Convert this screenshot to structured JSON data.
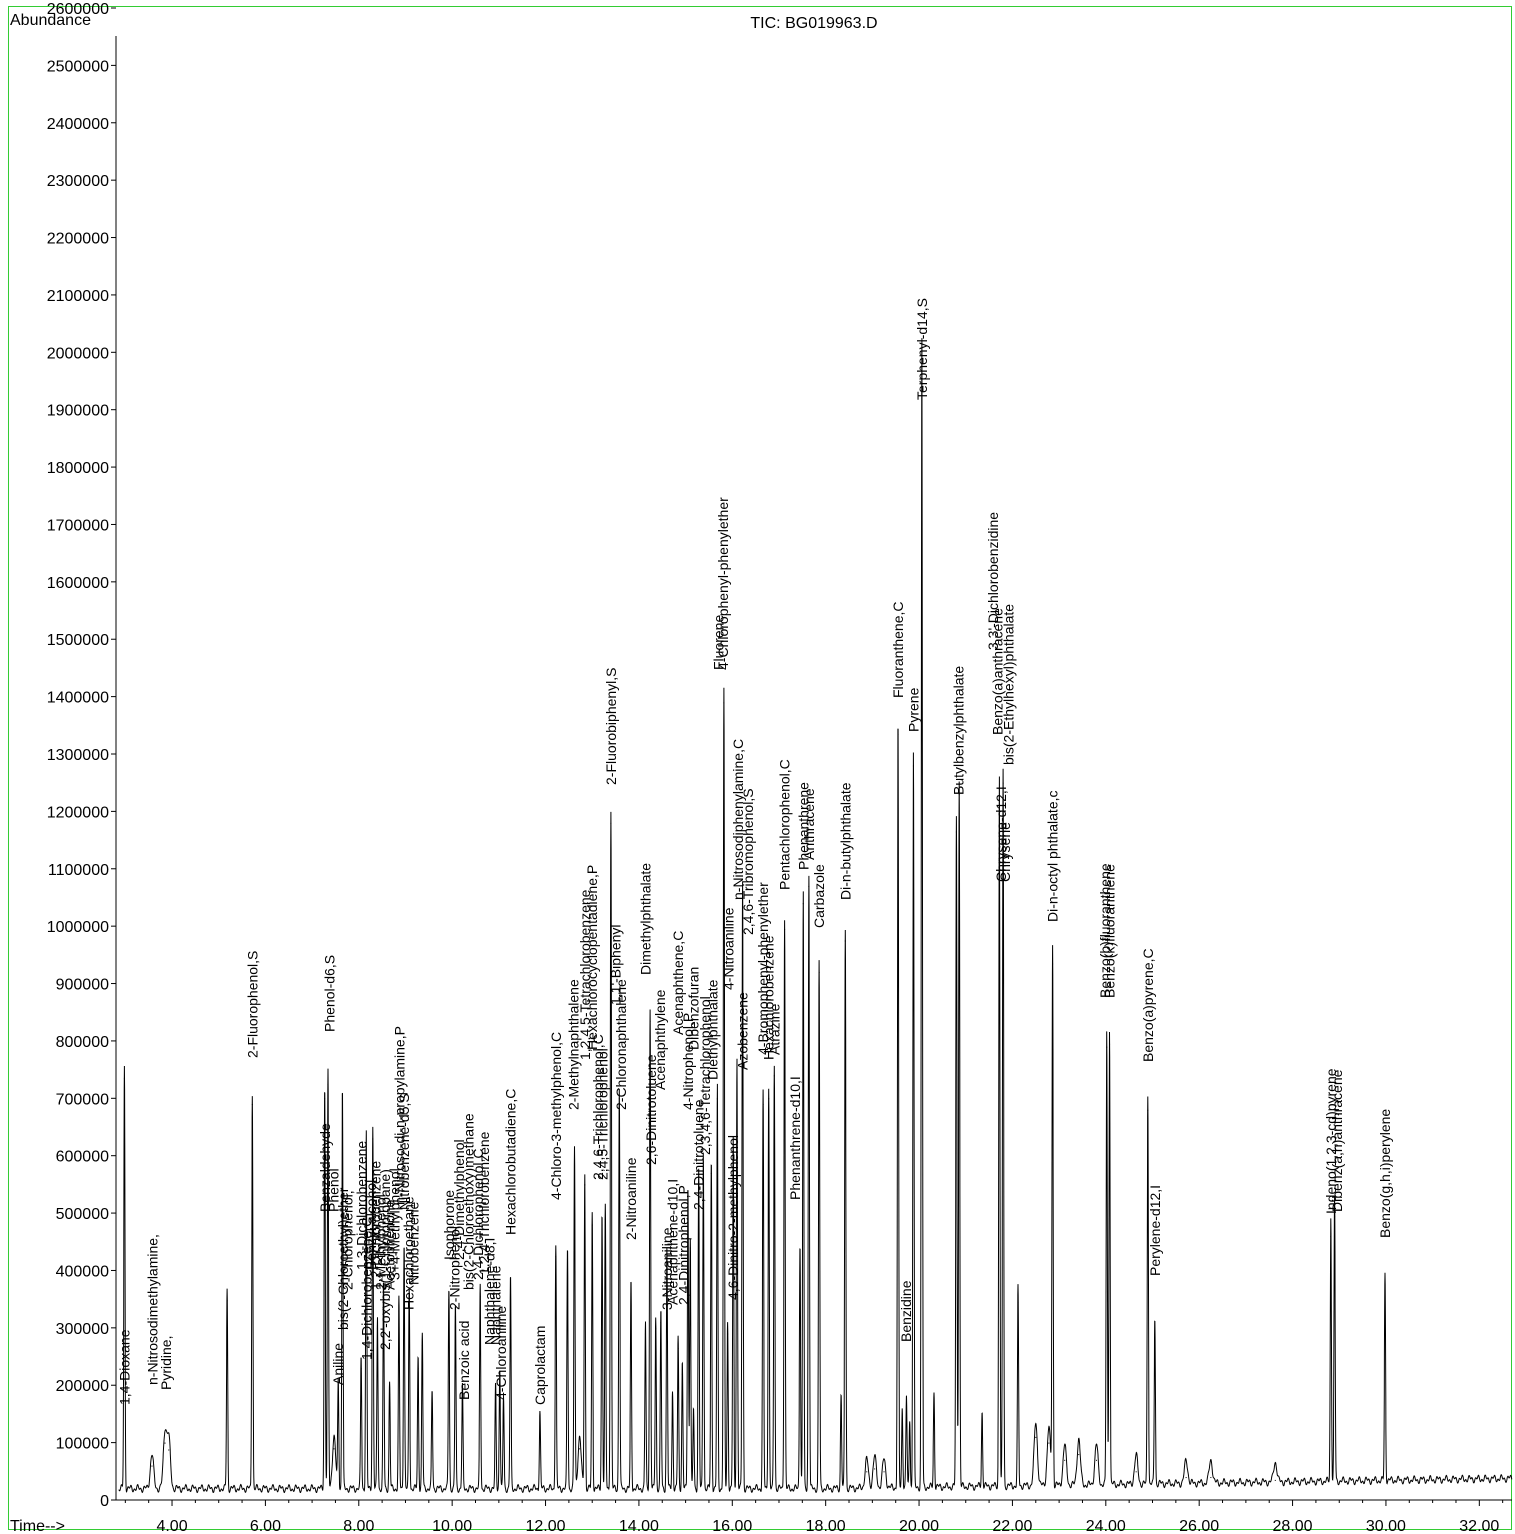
{
  "chart_data": {
    "type": "line",
    "title": "TIC: BG019963.D",
    "ylabel": "Abundance",
    "xlabel": "Time-->",
    "xlim": [
      2.8,
      32.7
    ],
    "ylim": [
      0,
      2600000
    ],
    "x_ticks": [
      4.0,
      6.0,
      8.0,
      10.0,
      12.0,
      14.0,
      16.0,
      18.0,
      20.0,
      22.0,
      24.0,
      26.0,
      28.0,
      30.0,
      32.0
    ],
    "x_tick_labels": [
      "4.00",
      "6.00",
      "8.00",
      "10.00",
      "12.00",
      "14.00",
      "16.00",
      "18.00",
      "20.00",
      "22.00",
      "24.00",
      "26.00",
      "28.00",
      "30.00",
      "32.00"
    ],
    "y_ticks": [
      0,
      100000,
      200000,
      300000,
      400000,
      500000,
      600000,
      700000,
      800000,
      900000,
      1000000,
      1100000,
      1200000,
      1300000,
      1400000,
      1500000,
      1600000,
      1700000,
      1800000,
      1900000,
      2000000,
      2100000,
      2200000,
      2300000,
      2400000,
      2500000,
      2600000
    ],
    "y_tick_labels": [
      "0",
      "100000",
      "200000",
      "300000",
      "400000",
      "500000",
      "600000",
      "700000",
      "800000",
      "900000",
      "1000000",
      "1100000",
      "1200000",
      "1300000",
      "1400000",
      "1500000",
      "1600000",
      "1700000",
      "1800000",
      "1900000",
      "2000000",
      "2100000",
      "2200000",
      "2300000",
      "2400000",
      "2500000",
      "2600000"
    ],
    "baseline": 20000,
    "peaks": [
      {
        "t": 2.98,
        "h": 735000
      },
      {
        "t": 3.57,
        "h": 60000
      },
      {
        "t": 3.85,
        "h": 100000
      },
      {
        "t": 3.93,
        "h": 88000
      },
      {
        "t": 5.18,
        "h": 348000
      },
      {
        "t": 5.72,
        "h": 690000
      },
      {
        "t": 7.27,
        "h": 700000
      },
      {
        "t": 7.34,
        "h": 725000
      },
      {
        "t": 7.47,
        "h": 90000
      },
      {
        "t": 7.56,
        "h": 190000
      },
      {
        "t": 7.65,
        "h": 700000
      },
      {
        "t": 8.05,
        "h": 230000
      },
      {
        "t": 8.16,
        "h": 620000
      },
      {
        "t": 8.3,
        "h": 630000
      },
      {
        "t": 8.4,
        "h": 300000
      },
      {
        "t": 8.53,
        "h": 360000
      },
      {
        "t": 8.66,
        "h": 185000
      },
      {
        "t": 8.86,
        "h": 330000
      },
      {
        "t": 8.97,
        "h": 430000
      },
      {
        "t": 9.08,
        "h": 350000
      },
      {
        "t": 9.27,
        "h": 230000
      },
      {
        "t": 9.36,
        "h": 270000
      },
      {
        "t": 9.57,
        "h": 170000
      },
      {
        "t": 9.93,
        "h": 350000
      },
      {
        "t": 10.07,
        "h": 320000
      },
      {
        "t": 10.22,
        "h": 180000
      },
      {
        "t": 10.6,
        "h": 355000
      },
      {
        "t": 10.93,
        "h": 180000
      },
      {
        "t": 11.02,
        "h": 210000
      },
      {
        "t": 11.1,
        "h": 160000
      },
      {
        "t": 11.25,
        "h": 370000
      },
      {
        "t": 11.88,
        "h": 135000
      },
      {
        "t": 12.22,
        "h": 425000
      },
      {
        "t": 12.47,
        "h": 420000
      },
      {
        "t": 12.62,
        "h": 595000
      },
      {
        "t": 12.73,
        "h": 90000
      },
      {
        "t": 12.84,
        "h": 550000
      },
      {
        "t": 13.0,
        "h": 480000
      },
      {
        "t": 13.21,
        "h": 480000
      },
      {
        "t": 13.28,
        "h": 490000
      },
      {
        "t": 13.4,
        "h": 1180000
      },
      {
        "t": 13.58,
        "h": 700000
      },
      {
        "t": 13.83,
        "h": 360000
      },
      {
        "t": 14.14,
        "h": 290000
      },
      {
        "t": 14.24,
        "h": 835000
      },
      {
        "t": 14.36,
        "h": 300000
      },
      {
        "t": 14.47,
        "h": 310000
      },
      {
        "t": 14.6,
        "h": 420000
      },
      {
        "t": 14.72,
        "h": 170000
      },
      {
        "t": 14.84,
        "h": 265000
      },
      {
        "t": 14.93,
        "h": 220000
      },
      {
        "t": 15.05,
        "h": 530000
      },
      {
        "t": 15.1,
        "h": 440000
      },
      {
        "t": 15.17,
        "h": 140000
      },
      {
        "t": 15.28,
        "h": 555000
      },
      {
        "t": 15.38,
        "h": 590000
      },
      {
        "t": 15.55,
        "h": 570000
      },
      {
        "t": 15.68,
        "h": 700000
      },
      {
        "t": 15.82,
        "h": 1390000
      },
      {
        "t": 15.9,
        "h": 290000
      },
      {
        "t": 16.02,
        "h": 610000
      },
      {
        "t": 16.1,
        "h": 750000
      },
      {
        "t": 16.22,
        "h": 1060000
      },
      {
        "t": 16.66,
        "h": 690000
      },
      {
        "t": 16.78,
        "h": 700000
      },
      {
        "t": 16.9,
        "h": 740000
      },
      {
        "t": 17.12,
        "h": 995000
      },
      {
        "t": 17.45,
        "h": 430000
      },
      {
        "t": 17.52,
        "h": 1040000
      },
      {
        "t": 17.64,
        "h": 1070000
      },
      {
        "t": 17.86,
        "h": 920000
      },
      {
        "t": 18.33,
        "h": 165000
      },
      {
        "t": 18.42,
        "h": 975000
      },
      {
        "t": 18.88,
        "h": 50000
      },
      {
        "t": 19.05,
        "h": 55000
      },
      {
        "t": 19.25,
        "h": 50000
      },
      {
        "t": 19.55,
        "h": 1335000
      },
      {
        "t": 19.64,
        "h": 140000
      },
      {
        "t": 19.73,
        "h": 160000
      },
      {
        "t": 19.8,
        "h": 120000
      },
      {
        "t": 19.88,
        "h": 1280000
      },
      {
        "t": 20.06,
        "h": 2000000
      },
      {
        "t": 20.32,
        "h": 165000
      },
      {
        "t": 20.8,
        "h": 1165000
      },
      {
        "t": 20.86,
        "h": 1230000
      },
      {
        "t": 21.35,
        "h": 130000
      },
      {
        "t": 21.72,
        "h": 1240000
      },
      {
        "t": 21.8,
        "h": 1250000
      },
      {
        "t": 22.12,
        "h": 345000
      },
      {
        "t": 22.5,
        "h": 110000
      },
      {
        "t": 22.78,
        "h": 100000
      },
      {
        "t": 22.86,
        "h": 935000
      },
      {
        "t": 23.12,
        "h": 70000
      },
      {
        "t": 23.42,
        "h": 80000
      },
      {
        "t": 23.8,
        "h": 70000
      },
      {
        "t": 24.02,
        "h": 790000
      },
      {
        "t": 24.08,
        "h": 795000
      },
      {
        "t": 24.65,
        "h": 50000
      },
      {
        "t": 24.9,
        "h": 680000
      },
      {
        "t": 25.05,
        "h": 290000
      },
      {
        "t": 25.72,
        "h": 40000
      },
      {
        "t": 26.25,
        "h": 40000
      },
      {
        "t": 27.63,
        "h": 35000
      },
      {
        "t": 28.82,
        "h": 460000
      },
      {
        "t": 28.9,
        "h": 495000
      },
      {
        "t": 29.98,
        "h": 360000
      }
    ],
    "annotations": [
      {
        "t": 2.98,
        "h": 0,
        "text": "1,4-Dioxane"
      },
      {
        "t": 3.58,
        "h": 0,
        "text": "n-Nitrosodimethylamine,"
      },
      {
        "t": 3.87,
        "h": 0,
        "text": "Pyridine,"
      },
      {
        "t": 5.72,
        "h": 0,
        "text": "2-Fluorophenol,S"
      },
      {
        "t": 7.28,
        "h": 0,
        "text": "Benzaldehyde"
      },
      {
        "t": 7.37,
        "h": 0,
        "text": "Phenol-d6,S"
      },
      {
        "t": 7.46,
        "h": 0,
        "text": "Phenol"
      },
      {
        "t": 7.56,
        "h": 0,
        "text": "Aniline"
      },
      {
        "t": 7.66,
        "h": 0,
        "text": "bis(2-Chloroethyl)ether"
      },
      {
        "t": 7.76,
        "h": 0,
        "text": "2-Chlorophenol,"
      },
      {
        "t": 8.06,
        "h": 0,
        "text": "1,3-Dichlorobenzene"
      },
      {
        "t": 8.16,
        "h": 0,
        "text": "1,4-Dichlorobenzene,C"
      },
      {
        "t": 8.26,
        "h": 0,
        "text": "Benzyl alcohol"
      },
      {
        "t": 8.36,
        "h": 0,
        "text": "1,2-Dichlorobenzene"
      },
      {
        "t": 8.46,
        "h": 0,
        "text": "2-Methylphenol"
      },
      {
        "t": 8.56,
        "h": 0,
        "text": "2,2'-oxybis(1-Chloropropane)"
      },
      {
        "t": 8.66,
        "h": 0,
        "text": "Acetophenone"
      },
      {
        "t": 8.77,
        "h": 0,
        "text": "3+4-Methylphenol"
      },
      {
        "t": 8.87,
        "h": 0,
        "text": "n-Nitroso-di-n-propylamine,P"
      },
      {
        "t": 8.97,
        "h": 0,
        "text": "Nitrobenzene-d5,S"
      },
      {
        "t": 9.07,
        "h": 0,
        "text": "Hexachloroethane"
      },
      {
        "t": 9.17,
        "h": 0,
        "text": "Nitrobenzene"
      },
      {
        "t": 9.93,
        "h": 0,
        "text": "Isophorone"
      },
      {
        "t": 10.05,
        "h": 0,
        "text": "2-Nitrophenol"
      },
      {
        "t": 10.15,
        "h": 0,
        "text": "2,4-Dimethylphenol"
      },
      {
        "t": 10.25,
        "h": 0,
        "text": "Benzoic acid"
      },
      {
        "t": 10.35,
        "h": 0,
        "text": "bis(2-Chloroethoxy)methane"
      },
      {
        "t": 10.55,
        "h": 0,
        "text": "2,4-Dichlorophenol,C"
      },
      {
        "t": 10.68,
        "h": 0,
        "text": "1,2,4-Trichlorobenzene"
      },
      {
        "t": 10.8,
        "h": 0,
        "text": "Naphthalene-d8,I"
      },
      {
        "t": 10.93,
        "h": 0,
        "text": "Naphthalene"
      },
      {
        "t": 11.05,
        "h": 0,
        "text": "4-Chloroaniline"
      },
      {
        "t": 11.25,
        "h": 0,
        "text": "Hexachlorobutadiene,C"
      },
      {
        "t": 11.88,
        "h": 0,
        "text": "Caprolactam"
      },
      {
        "t": 12.22,
        "h": 0,
        "text": "4-Chloro-3-methylphenol,C"
      },
      {
        "t": 12.6,
        "h": 0,
        "text": "2-Methylnaphthalene"
      },
      {
        "t": 12.84,
        "h": 0,
        "text": "1,2,4,5-Tetrachlorobenzene"
      },
      {
        "t": 13.0,
        "h": 0,
        "text": "Hexachlorocyclopentadiene,P"
      },
      {
        "t": 13.12,
        "h": 0,
        "text": "2,4,6-Trichlorophenol,C"
      },
      {
        "t": 13.22,
        "h": 0,
        "text": "2,4,5-Trichlorophenol"
      },
      {
        "t": 13.4,
        "h": 0,
        "text": "2-Fluorobiphenyl,S"
      },
      {
        "t": 13.5,
        "h": 0,
        "text": "1,1'-Biphenyl"
      },
      {
        "t": 13.62,
        "h": 0,
        "text": "2-Chloronaphthalene"
      },
      {
        "t": 13.83,
        "h": 0,
        "text": "2-Nitroaniline"
      },
      {
        "t": 14.14,
        "h": 0,
        "text": "Dimethylphthalate"
      },
      {
        "t": 14.26,
        "h": 0,
        "text": "2,6-Dinitrotoluene"
      },
      {
        "t": 14.45,
        "h": 0,
        "text": "Acenaphthylene"
      },
      {
        "t": 14.6,
        "h": 0,
        "text": "3-Nitroaniline"
      },
      {
        "t": 14.72,
        "h": 0,
        "text": "Acenaphthene-d10,I"
      },
      {
        "t": 14.84,
        "h": 0,
        "text": "Acenaphthene,C"
      },
      {
        "t": 14.96,
        "h": 0,
        "text": "2,4-Dinitrophenol,P"
      },
      {
        "t": 15.05,
        "h": 0,
        "text": "4-Nitrophenol,P"
      },
      {
        "t": 15.17,
        "h": 0,
        "text": "Dibenzofuran"
      },
      {
        "t": 15.28,
        "h": 0,
        "text": "2,4-Dinitrotoluene"
      },
      {
        "t": 15.42,
        "h": 0,
        "text": "2,3,4,6-Tetrachlorophenol"
      },
      {
        "t": 15.58,
        "h": 0,
        "text": "Diethylphthalate"
      },
      {
        "t": 15.7,
        "h": 0,
        "text": "Fluorene"
      },
      {
        "t": 15.8,
        "h": 0,
        "text": "4-Chlorophenyl-phenylether"
      },
      {
        "t": 15.92,
        "h": 0,
        "text": "4-Nitroaniline"
      },
      {
        "t": 16.02,
        "h": 0,
        "text": "4,6-Dinitro-2-methylphenol"
      },
      {
        "t": 16.12,
        "h": 0,
        "text": "n-Nitrosodiphenylamine,C"
      },
      {
        "t": 16.22,
        "h": 0,
        "text": "Azobenzene"
      },
      {
        "t": 16.34,
        "h": 0,
        "text": "2,4,6-Tribromophenol,S"
      },
      {
        "t": 16.66,
        "h": 0,
        "text": "4-Bromophenyl-phenylether"
      },
      {
        "t": 16.78,
        "h": 0,
        "text": "Hexachlorobenzene"
      },
      {
        "t": 16.9,
        "h": 0,
        "text": "Atrazine"
      },
      {
        "t": 17.12,
        "h": 0,
        "text": "Pentachlorophenol,C"
      },
      {
        "t": 17.34,
        "h": 0,
        "text": "Phenanthrene-d10,I"
      },
      {
        "t": 17.52,
        "h": 0,
        "text": "Phenanthrene"
      },
      {
        "t": 17.64,
        "h": 0,
        "text": "Anthracene"
      },
      {
        "t": 17.86,
        "h": 0,
        "text": "Carbazole"
      },
      {
        "t": 18.42,
        "h": 0,
        "text": "Di-n-butylphthalate"
      },
      {
        "t": 19.55,
        "h": 0,
        "text": "Fluoranthene,C"
      },
      {
        "t": 19.72,
        "h": 0,
        "text": "Benzidine"
      },
      {
        "t": 19.88,
        "h": 0,
        "text": "Pyrene"
      },
      {
        "t": 20.06,
        "h": 0,
        "text": "Terphenyl-d14,S"
      },
      {
        "t": 20.84,
        "h": 0,
        "text": "Butylbenzylphthalate"
      },
      {
        "t": 21.58,
        "h": 0,
        "text": "3,3'-Dichlorobenzidine"
      },
      {
        "t": 21.68,
        "h": 0,
        "text": "Benzo(a)anthracene"
      },
      {
        "t": 21.76,
        "h": 0,
        "text": "Chrysene-d12,I"
      },
      {
        "t": 21.84,
        "h": 0,
        "text": "Chrysene"
      },
      {
        "t": 21.92,
        "h": 0,
        "text": "bis(2-Ethylhexyl)phthalate"
      },
      {
        "t": 22.86,
        "h": 0,
        "text": "Di-n-octyl phthalate,c"
      },
      {
        "t": 23.98,
        "h": 0,
        "text": "Benzo(b)fluoranthene"
      },
      {
        "t": 24.08,
        "h": 0,
        "text": "Benzo(k)fluoranthene"
      },
      {
        "t": 24.9,
        "h": 0,
        "text": "Benzo(a)pyrene,C"
      },
      {
        "t": 25.05,
        "h": 0,
        "text": "Perylene-d12,I"
      },
      {
        "t": 28.82,
        "h": 0,
        "text": "Indeno(1,2,3-cd)pyrene"
      },
      {
        "t": 28.95,
        "h": 0,
        "text": "Dibenz(a,h)anthracene"
      },
      {
        "t": 29.98,
        "h": 0,
        "text": "Benzo(g,h,i)perylene"
      }
    ]
  }
}
